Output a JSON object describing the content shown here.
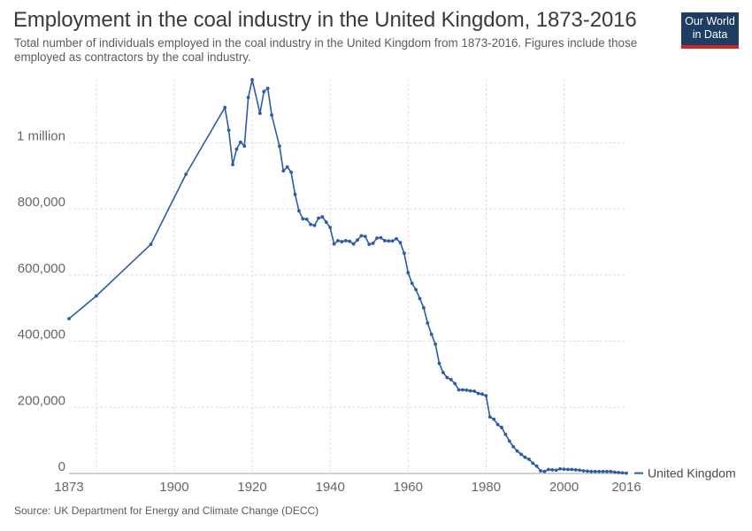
{
  "header": {
    "title": "Employment in the coal industry in the United Kingdom, 1873-2016",
    "subtitle": "Total number of individuals employed in the coal industry in the United Kingdom from 1873-2016. Figures include those employed as contractors by the coal industry."
  },
  "logo": {
    "line1": "Our World",
    "line2": "in Data",
    "bg": "#1d3d63",
    "accent": "#ce261e"
  },
  "footer": {
    "source": "Source: UK Department for Energy and Climate Change (DECC)"
  },
  "colors": {
    "series": "#2c5ba8",
    "grid": "#dddddd",
    "axis_text": "#666666"
  },
  "chart_data": {
    "type": "line",
    "xlim": [
      1873,
      2016
    ],
    "ylim": [
      0,
      1191000
    ],
    "x_ticks": [
      {
        "value": 1873,
        "label": "1873"
      },
      {
        "value": 1900,
        "label": "1900"
      },
      {
        "value": 1920,
        "label": "1920"
      },
      {
        "value": 1940,
        "label": "1940"
      },
      {
        "value": 1960,
        "label": "1960"
      },
      {
        "value": 1980,
        "label": "1980"
      },
      {
        "value": 2000,
        "label": "2000"
      },
      {
        "value": 2016,
        "label": "2016"
      }
    ],
    "x_gridlines": [
      1880,
      1900,
      1920,
      1940,
      1960,
      1980,
      2000
    ],
    "y_ticks": [
      {
        "value": 0,
        "label": "0"
      },
      {
        "value": 200000,
        "label": "200,000"
      },
      {
        "value": 400000,
        "label": "400,000"
      },
      {
        "value": 600000,
        "label": "600,000"
      },
      {
        "value": 800000,
        "label": "800,000"
      },
      {
        "value": 1000000,
        "label": "1 million"
      }
    ],
    "grid": true,
    "legend": "right",
    "series": [
      {
        "name": "United Kingdom",
        "points": [
          [
            1873,
            468000
          ],
          [
            1880,
            537000
          ],
          [
            1894,
            693000
          ],
          [
            1903,
            905000
          ],
          [
            1913,
            1107000
          ],
          [
            1914,
            1038000
          ],
          [
            1915,
            934000
          ],
          [
            1916,
            981000
          ],
          [
            1917,
            1002000
          ],
          [
            1918,
            990000
          ],
          [
            1919,
            1137000
          ],
          [
            1920,
            1191000
          ],
          [
            1922,
            1089000
          ],
          [
            1923,
            1155000
          ],
          [
            1924,
            1165000
          ],
          [
            1925,
            1084000
          ],
          [
            1927,
            990000
          ],
          [
            1928,
            915000
          ],
          [
            1929,
            927000
          ],
          [
            1930,
            911000
          ],
          [
            1931,
            844000
          ],
          [
            1932,
            794000
          ],
          [
            1933,
            770000
          ],
          [
            1934,
            769000
          ],
          [
            1935,
            753000
          ],
          [
            1936,
            750000
          ],
          [
            1937,
            772000
          ],
          [
            1938,
            776000
          ],
          [
            1939,
            760000
          ],
          [
            1940,
            744000
          ],
          [
            1941,
            694000
          ],
          [
            1942,
            704000
          ],
          [
            1943,
            701000
          ],
          [
            1944,
            704000
          ],
          [
            1945,
            702000
          ],
          [
            1946,
            694000
          ],
          [
            1947,
            706000
          ],
          [
            1948,
            719000
          ],
          [
            1949,
            717000
          ],
          [
            1950,
            693000
          ],
          [
            1951,
            696000
          ],
          [
            1952,
            712000
          ],
          [
            1953,
            713000
          ],
          [
            1954,
            704000
          ],
          [
            1955,
            703000
          ],
          [
            1956,
            703000
          ],
          [
            1957,
            710000
          ],
          [
            1958,
            698000
          ],
          [
            1959,
            666000
          ],
          [
            1960,
            607000
          ],
          [
            1961,
            575000
          ],
          [
            1962,
            556000
          ],
          [
            1963,
            529000
          ],
          [
            1964,
            501000
          ],
          [
            1965,
            455000
          ],
          [
            1966,
            421000
          ],
          [
            1967,
            391000
          ],
          [
            1968,
            333000
          ],
          [
            1969,
            305000
          ],
          [
            1970,
            290000
          ],
          [
            1971,
            284000
          ],
          [
            1972,
            272000
          ],
          [
            1973,
            253000
          ],
          [
            1974,
            253000
          ],
          [
            1975,
            252000
          ],
          [
            1976,
            250000
          ],
          [
            1977,
            249000
          ],
          [
            1978,
            242000
          ],
          [
            1979,
            240000
          ],
          [
            1980,
            235000
          ],
          [
            1981,
            171000
          ],
          [
            1982,
            164000
          ],
          [
            1983,
            148000
          ],
          [
            1984,
            139000
          ],
          [
            1985,
            118000
          ],
          [
            1986,
            98000
          ],
          [
            1987,
            81000
          ],
          [
            1988,
            68000
          ],
          [
            1989,
            58000
          ],
          [
            1990,
            49000
          ],
          [
            1991,
            43000
          ],
          [
            1992,
            31000
          ],
          [
            1993,
            22000
          ],
          [
            1994,
            8000
          ],
          [
            1995,
            6000
          ],
          [
            1996,
            12000
          ],
          [
            1997,
            11000
          ],
          [
            1998,
            10000
          ],
          [
            1999,
            14000
          ],
          [
            2000,
            13000
          ],
          [
            2001,
            12000
          ],
          [
            2002,
            12000
          ],
          [
            2003,
            11000
          ],
          [
            2004,
            10000
          ],
          [
            2005,
            8000
          ],
          [
            2006,
            7000
          ],
          [
            2007,
            6000
          ],
          [
            2008,
            6000
          ],
          [
            2009,
            6000
          ],
          [
            2010,
            6000
          ],
          [
            2011,
            6000
          ],
          [
            2012,
            6000
          ],
          [
            2013,
            4000
          ],
          [
            2014,
            3000
          ],
          [
            2015,
            2000
          ],
          [
            2016,
            1000
          ]
        ]
      }
    ]
  }
}
